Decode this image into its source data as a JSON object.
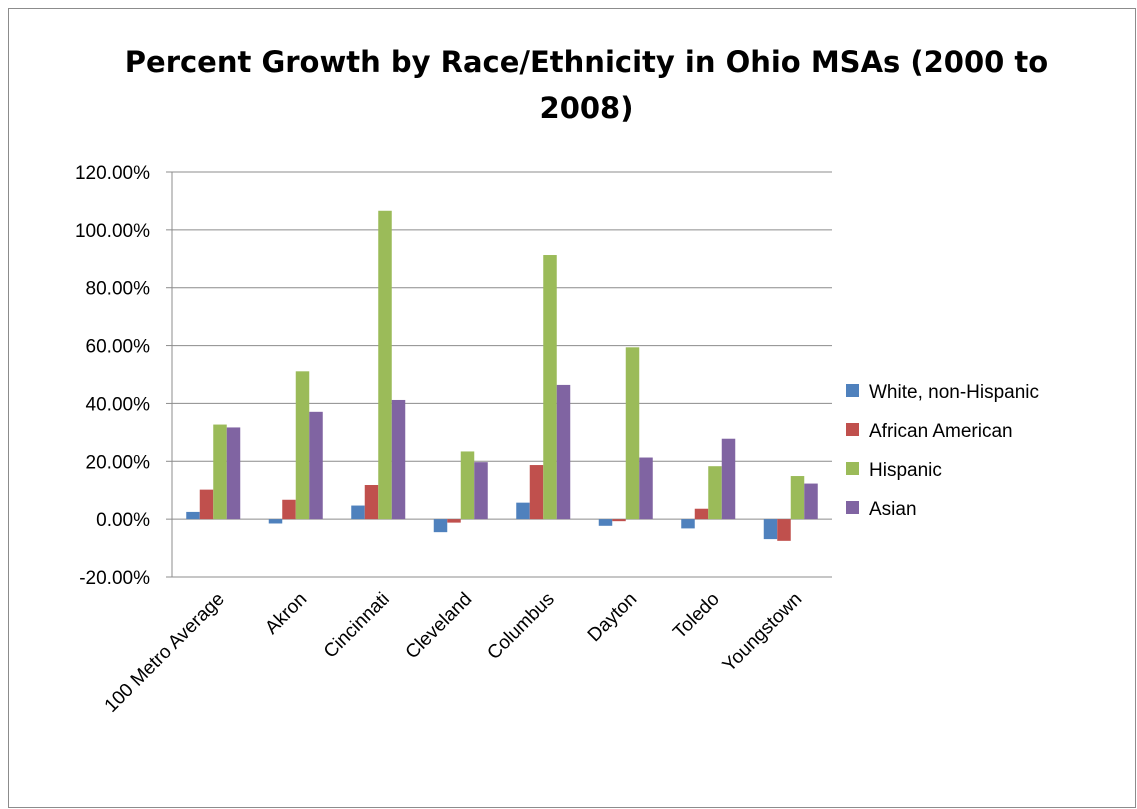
{
  "chart_data": {
    "type": "bar",
    "title": "Percent Growth by Race/Ethnicity in Ohio MSAs (2000 to 2008)",
    "xlabel": "",
    "ylabel": "",
    "ylim": [
      -20,
      120
    ],
    "yticks": [
      -20,
      0,
      20,
      40,
      60,
      80,
      100,
      120
    ],
    "ytick_labels": [
      "-20.00%",
      "0.00%",
      "20.00%",
      "40.00%",
      "60.00%",
      "80.00%",
      "100.00%",
      "120.00%"
    ],
    "grid": true,
    "legend_position": "right",
    "categories": [
      "100 Metro Average",
      "Akron",
      "Cincinnati",
      "Cleveland",
      "Columbus",
      "Dayton",
      "Toledo",
      "Youngstown"
    ],
    "series": [
      {
        "name": "White, non-Hispanic",
        "color": "#4f81bd",
        "values": [
          2.5,
          -1.5,
          4.7,
          -4.5,
          5.7,
          -2.3,
          -3.2,
          -6.9
        ]
      },
      {
        "name": "African American",
        "color": "#c0504d",
        "values": [
          10.2,
          6.7,
          11.8,
          -1.2,
          18.7,
          -0.7,
          3.6,
          -7.5
        ]
      },
      {
        "name": "Hispanic",
        "color": "#9bbb59",
        "values": [
          32.7,
          51.1,
          106.6,
          23.4,
          91.3,
          59.4,
          18.3,
          14.9
        ]
      },
      {
        "name": "Asian",
        "color": "#8064a2",
        "values": [
          31.7,
          37.1,
          41.2,
          19.7,
          46.4,
          21.3,
          27.8,
          12.3
        ]
      }
    ]
  }
}
